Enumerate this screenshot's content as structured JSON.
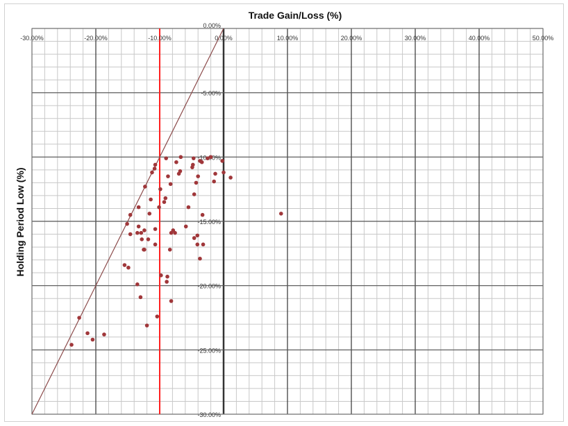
{
  "chart_data": {
    "type": "scatter",
    "title": "Trade Gain/Loss (%)",
    "xlabel": "Trade Gain/Loss (%)",
    "ylabel": "Holding Period Low (%)",
    "xlim": [
      -30,
      50
    ],
    "ylim": [
      -30,
      0
    ],
    "x_ticks": [
      -30,
      -20,
      -10,
      0,
      10,
      20,
      30,
      40,
      50
    ],
    "x_tick_labels": [
      "-30.00%",
      "-20.00%",
      "-10.00%",
      "0.00%",
      "10.00%",
      "20.00%",
      "30.00%",
      "40.00%",
      "50.00%"
    ],
    "y_ticks": [
      0,
      -5,
      -10,
      -15,
      -20,
      -25,
      -30
    ],
    "y_tick_labels": [
      "0.00%",
      "-5.00%",
      "-10.00%",
      "-15.00%",
      "-20.00%",
      "-25.00%",
      "-30.00%"
    ],
    "grid": true,
    "reference_lines": {
      "vertical_red_x": -10,
      "diagonal": "y = x"
    },
    "colors": {
      "points": "#a0373a",
      "red_line": "#ff2020",
      "diagonal": "#8b4a4a",
      "axis": "#000000",
      "grid": "#c8c8c8"
    },
    "points": [
      [
        -9.0,
        -10.1
      ],
      [
        -6.7,
        -10.0
      ],
      [
        -7.4,
        -10.4
      ],
      [
        -10.7,
        -10.6
      ],
      [
        -10.8,
        -10.9
      ],
      [
        -11.2,
        -11.2
      ],
      [
        -4.7,
        -10.1
      ],
      [
        -3.7,
        -10.3
      ],
      [
        -3.4,
        -10.4
      ],
      [
        -2.5,
        -10.1
      ],
      [
        -2.0,
        -10.0
      ],
      [
        -0.2,
        -10.3
      ],
      [
        -4.8,
        -10.6
      ],
      [
        -4.9,
        -10.8
      ],
      [
        -6.8,
        -11.1
      ],
      [
        -7.0,
        -11.3
      ],
      [
        -8.7,
        -11.5
      ],
      [
        -4.0,
        -11.5
      ],
      [
        -1.3,
        -11.3
      ],
      [
        0.0,
        -11.2
      ],
      [
        1.1,
        -11.6
      ],
      [
        -1.5,
        -11.9
      ],
      [
        -4.3,
        -12.0
      ],
      [
        -8.3,
        -12.1
      ],
      [
        -9.9,
        -12.5
      ],
      [
        -12.3,
        -12.3
      ],
      [
        -4.6,
        -12.9
      ],
      [
        -9.1,
        -13.2
      ],
      [
        -9.3,
        -13.5
      ],
      [
        -11.4,
        -13.3
      ],
      [
        -13.3,
        -13.9
      ],
      [
        -10.1,
        -13.9
      ],
      [
        -5.5,
        -13.9
      ],
      [
        -14.6,
        -14.5
      ],
      [
        -11.6,
        -14.4
      ],
      [
        -3.3,
        -14.5
      ],
      [
        -15.1,
        -15.2
      ],
      [
        -13.3,
        -15.4
      ],
      [
        -10.7,
        -15.6
      ],
      [
        -12.4,
        -15.7
      ],
      [
        -14.6,
        -16.0
      ],
      [
        -13.5,
        -15.9
      ],
      [
        -12.9,
        -15.9
      ],
      [
        -7.9,
        -15.7
      ],
      [
        -8.2,
        -15.9
      ],
      [
        -7.6,
        -15.9
      ],
      [
        -5.9,
        -15.4
      ],
      [
        -4.1,
        -16.1
      ],
      [
        -4.6,
        -16.3
      ],
      [
        -12.8,
        -16.4
      ],
      [
        -11.8,
        -16.4
      ],
      [
        -10.7,
        -16.8
      ],
      [
        -4.1,
        -16.8
      ],
      [
        -3.2,
        -16.8
      ],
      [
        -12.5,
        -17.2
      ],
      [
        -12.4,
        -17.2
      ],
      [
        -8.4,
        -17.2
      ],
      [
        -3.7,
        -17.9
      ],
      [
        -15.5,
        -18.4
      ],
      [
        -14.9,
        -18.6
      ],
      [
        -9.8,
        -19.2
      ],
      [
        -8.8,
        -19.3
      ],
      [
        -8.9,
        -19.7
      ],
      [
        -13.5,
        -19.9
      ],
      [
        -13.0,
        -20.9
      ],
      [
        -8.2,
        -21.2
      ],
      [
        -10.4,
        -22.4
      ],
      [
        -12.0,
        -23.1
      ],
      [
        -22.6,
        -22.5
      ],
      [
        -21.3,
        -23.7
      ],
      [
        -20.5,
        -24.2
      ],
      [
        -18.7,
        -23.8
      ],
      [
        -23.8,
        -24.6
      ],
      [
        9.0,
        -14.4
      ]
    ]
  }
}
